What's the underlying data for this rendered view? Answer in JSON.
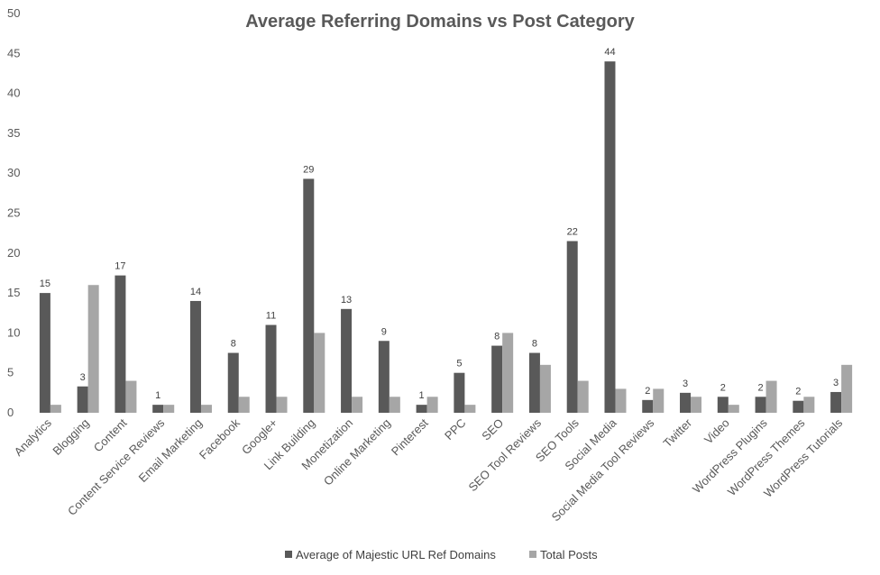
{
  "chart_data": {
    "type": "bar",
    "title": "Average Referring Domains vs Post Category",
    "xlabel": "",
    "ylabel": "",
    "ylim": [
      0,
      50
    ],
    "yticks": [
      0,
      5,
      10,
      15,
      20,
      25,
      30,
      35,
      40,
      45,
      50
    ],
    "grid": false,
    "legend_position": "bottom",
    "categories": [
      "Analytics",
      "Blogging",
      "Content",
      "Content Service Reviews",
      "Email Marketing",
      "Facebook",
      "Google+",
      "Link Building",
      "Monetization",
      "Online Marketing",
      "Pinterest",
      "PPC",
      "SEO",
      "SEO Tool Reviews",
      "SEO Tools",
      "Social Media",
      "Social Media Tool Reviews",
      "Twitter",
      "Video",
      "WordPress Plugins",
      "WordPress Themes",
      "WordPress Tutorials"
    ],
    "series": [
      {
        "name": "Average of Majestic URL Ref Domains",
        "color": "#595959",
        "values": [
          15,
          3.3,
          17.2,
          1,
          14,
          7.5,
          11,
          29.3,
          13,
          9,
          1,
          5,
          8.4,
          7.5,
          21.5,
          44,
          1.6,
          2.5,
          2,
          2,
          1.5,
          2.6
        ],
        "labels": [
          "15",
          "3",
          "17",
          "1",
          "14",
          "8",
          "11",
          "29",
          "13",
          "9",
          "1",
          "5",
          "8",
          "8",
          "22",
          "44",
          "2",
          "3",
          "2",
          "2",
          "2",
          "3"
        ]
      },
      {
        "name": "Total Posts",
        "color": "#a6a6a6",
        "values": [
          1,
          16,
          4,
          1,
          1,
          2,
          2,
          10,
          2,
          2,
          2,
          1,
          10,
          6,
          4,
          3,
          3,
          2,
          1,
          4,
          2,
          6
        ]
      }
    ]
  }
}
